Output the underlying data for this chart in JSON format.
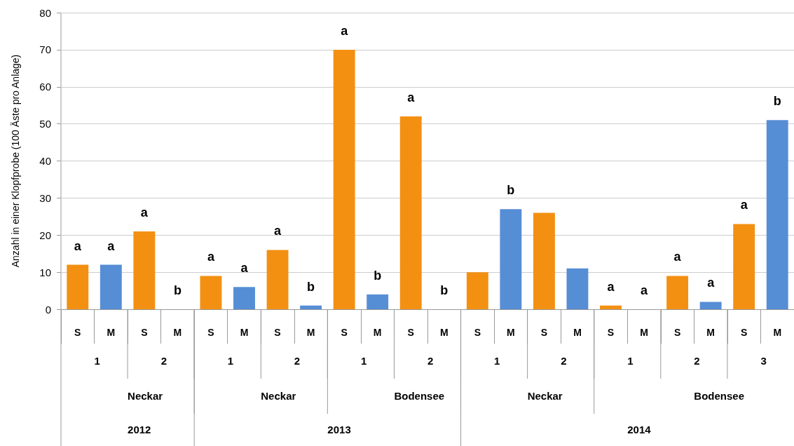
{
  "chart_data": {
    "type": "bar",
    "ylabel": "Anzahl in einer Klopfprobe (100 Äste pro Anlage)",
    "categories": [
      "S",
      "M",
      "S",
      "M",
      "S",
      "M",
      "S",
      "M",
      "S",
      "M",
      "S",
      "M",
      "S",
      "M",
      "S",
      "M",
      "S",
      "M",
      "S",
      "M",
      "S",
      "M"
    ],
    "series": [
      {
        "values": [
          12,
          12,
          21,
          0,
          9,
          6,
          16,
          1,
          70,
          4,
          52,
          0,
          10,
          27,
          26,
          11,
          1,
          0,
          9,
          2,
          23,
          51
        ],
        "colors": [
          "#f39012",
          "#568ed5",
          "#f39012",
          "#568ed5",
          "#f39012",
          "#568ed5",
          "#f39012",
          "#568ed5",
          "#f39012",
          "#568ed5",
          "#f39012",
          "#568ed5",
          "#f39012",
          "#568ed5",
          "#f39012",
          "#568ed5",
          "#f39012",
          "#568ed5",
          "#f39012",
          "#568ed5",
          "#f39012",
          "#568ed5"
        ],
        "value_labels": [
          "a",
          "a",
          "a",
          "b",
          "a",
          "a",
          "a",
          "b",
          "a",
          "b",
          "a",
          "b",
          null,
          "b",
          null,
          null,
          "a",
          "a",
          "a",
          "a",
          "a",
          "b"
        ]
      }
    ],
    "annotations": [
      "1",
      "2",
      "1",
      "2",
      "1",
      "2",
      "1",
      "2",
      "1",
      "2",
      "3",
      "Neckar",
      "Neckar",
      "Bodensee",
      "Neckar",
      "Bodensee",
      "2012",
      "2013",
      "2014"
    ],
    "ylim": [
      0,
      80
    ],
    "yticks": [
      0,
      10,
      20,
      30,
      40,
      50,
      60,
      70,
      80
    ],
    "grid": "y"
  }
}
